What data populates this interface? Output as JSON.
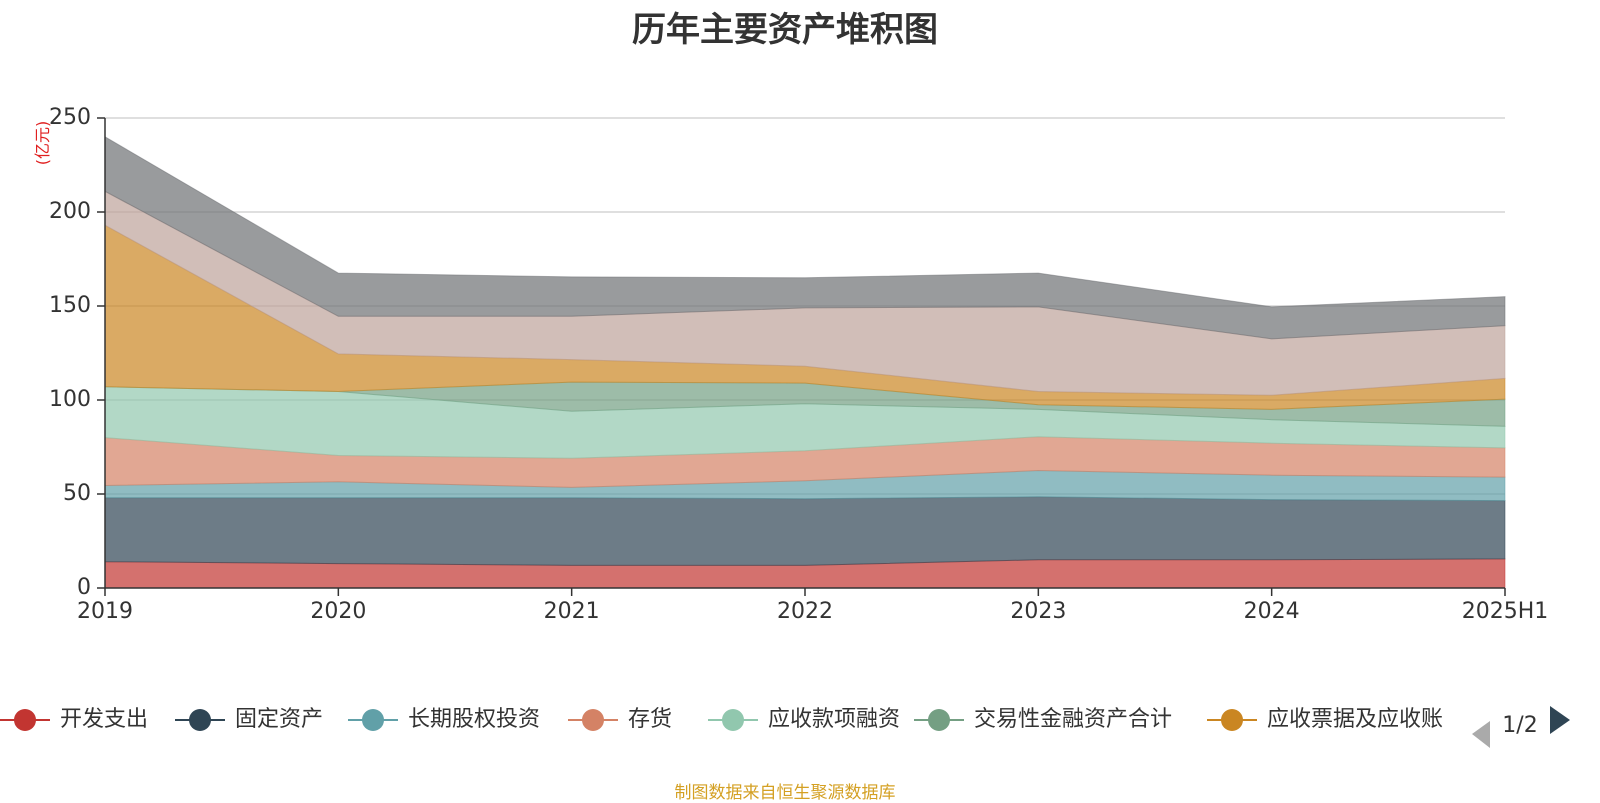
{
  "chart_data": {
    "type": "area",
    "title": "历年主要资产堆积图",
    "ylabel": "(亿元)",
    "xlabel": "",
    "ylim": [
      0,
      250
    ],
    "yticks": [
      0,
      50,
      100,
      150,
      200,
      250
    ],
    "grid": true,
    "stacked": true,
    "legend_position": "bottom",
    "x": [
      "2019",
      "2020",
      "2021",
      "2022",
      "2023",
      "2024",
      "2025H1"
    ],
    "series": [
      {
        "name": "开发支出",
        "color": "#c23531",
        "values": [
          14,
          13,
          12,
          12,
          15,
          15,
          15.5
        ]
      },
      {
        "name": "固定资产",
        "color": "#2f4554",
        "values": [
          34,
          35,
          36,
          35.5,
          33.5,
          32,
          31
        ]
      },
      {
        "name": "长期股权投资",
        "color": "#61a0a8",
        "values": [
          6.5,
          8.5,
          5.5,
          9.5,
          14,
          13,
          12.5
        ]
      },
      {
        "name": "存货",
        "color": "#d48265",
        "values": [
          25.5,
          14,
          15.5,
          16,
          18,
          17,
          15.5
        ]
      },
      {
        "name": "应收款项融资",
        "color": "#91c7ae",
        "values": [
          27,
          34,
          25,
          25,
          14.5,
          12.5,
          11.5
        ]
      },
      {
        "name": "交易性金融资产合计",
        "color": "#749f83",
        "values": [
          0,
          0,
          15.5,
          11,
          2.5,
          5.5,
          14.5
        ]
      },
      {
        "name": "应收票据及应收账",
        "color": "#ca8622",
        "values": [
          86,
          20,
          12,
          9,
          7,
          7.5,
          11
        ]
      },
      {
        "name": "",
        "color": "#bda29a",
        "values": [
          18,
          20,
          23,
          31,
          45,
          30,
          28
        ]
      },
      {
        "name": "",
        "color": "#6e7074",
        "values": [
          29,
          23,
          21,
          16,
          18,
          17,
          15.5
        ]
      }
    ]
  },
  "legend": {
    "page_indicator": "1/2"
  },
  "source_note": "制图数据来自恒生聚源数据库"
}
